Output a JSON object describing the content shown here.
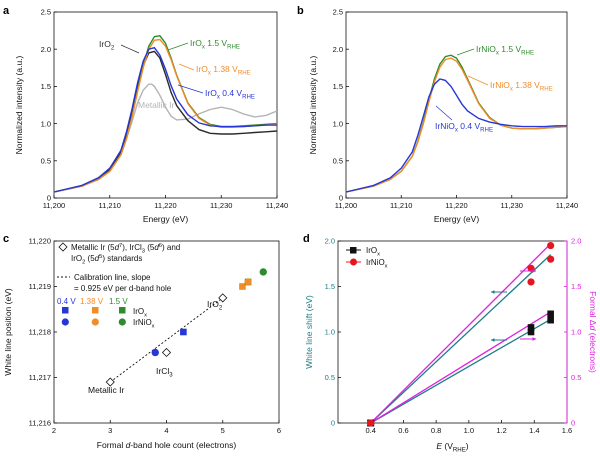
{
  "colors": {
    "ir_metal": "#b4b4b4",
    "iro2": "#2b2b2b",
    "iro_low": "#2637d6",
    "iro_mid": "#f28c28",
    "iro_high": "#2e8b2e",
    "niox_low": "#2637d6",
    "niox_mid": "#f28c28",
    "niox_high": "#2e8b2e",
    "teal": "#1c7f86",
    "magenta": "#e020e0",
    "black": "#111111",
    "red": "#e8141e"
  },
  "chart_data": [
    {
      "panel": "a",
      "type": "line",
      "xlabel": "Energy (eV)",
      "ylabel": "Normalized intensity (a.u.)",
      "xlim": [
        11200,
        11240
      ],
      "ylim": [
        0,
        2.5
      ],
      "xticks": [
        "11,200",
        "11,210",
        "11,220",
        "11,230",
        "11,240"
      ],
      "xtick_values": [
        11200,
        11210,
        11220,
        11230,
        11240
      ],
      "yticks": [
        "0",
        "0.5",
        "1.0",
        "1.5",
        "2.0",
        "2.5"
      ],
      "ytick_values": [
        0,
        0.5,
        1.0,
        1.5,
        2.0,
        2.5
      ],
      "labels": {
        "iro2": "IrO",
        "iro2_sub": "2",
        "iro_high": "IrO",
        "iro_high_sub": "x",
        "iro_high_v": " 1.5 V",
        "iro_high_rhe": "RHE",
        "iro_mid": "IrO",
        "iro_mid_sub": "x",
        "iro_mid_v": " 1.38 V",
        "iro_mid_rhe": "RHE",
        "iro_low": "IrO",
        "iro_low_sub": "x",
        "iro_low_v": " 0.4 V",
        "iro_low_rhe": "RHE",
        "metal": "Metallic Ir"
      },
      "series": [
        {
          "key": "metal",
          "x": [
            11200,
            11205,
            11208,
            11210,
            11212,
            11213,
            11214,
            11215,
            11216,
            11217,
            11217.5,
            11218,
            11219,
            11220,
            11221,
            11222,
            11224,
            11226,
            11228,
            11230,
            11232,
            11234,
            11236,
            11238,
            11240
          ],
          "y": [
            0.08,
            0.17,
            0.28,
            0.4,
            0.62,
            0.8,
            1.03,
            1.28,
            1.45,
            1.53,
            1.53,
            1.5,
            1.38,
            1.22,
            1.1,
            1.05,
            1.06,
            1.13,
            1.19,
            1.22,
            1.19,
            1.13,
            1.09,
            1.11,
            1.17
          ]
        },
        {
          "key": "iro2",
          "x": [
            11200,
            11205,
            11208,
            11210,
            11212,
            11213,
            11214,
            11215,
            11216,
            11217,
            11218,
            11219,
            11220,
            11221,
            11222,
            11224,
            11226,
            11228,
            11230,
            11232,
            11234,
            11236,
            11238,
            11240
          ],
          "y": [
            0.08,
            0.16,
            0.26,
            0.38,
            0.62,
            0.86,
            1.16,
            1.5,
            1.78,
            1.95,
            1.97,
            1.88,
            1.66,
            1.42,
            1.24,
            1.04,
            0.92,
            0.87,
            0.86,
            0.86,
            0.87,
            0.88,
            0.89,
            0.9
          ]
        },
        {
          "key": "iro_high",
          "x": [
            11200,
            11205,
            11208,
            11210,
            11212,
            11213,
            11214,
            11215,
            11216,
            11217,
            11218,
            11219,
            11220,
            11221,
            11222,
            11224,
            11226,
            11228,
            11230,
            11232,
            11234,
            11236,
            11238,
            11240
          ],
          "y": [
            0.08,
            0.16,
            0.25,
            0.36,
            0.58,
            0.8,
            1.1,
            1.45,
            1.78,
            2.04,
            2.17,
            2.18,
            2.08,
            1.88,
            1.65,
            1.28,
            1.08,
            0.99,
            0.96,
            0.96,
            0.97,
            0.98,
            0.99,
            1.0
          ]
        },
        {
          "key": "iro_mid",
          "x": [
            11200,
            11205,
            11208,
            11210,
            11212,
            11213,
            11214,
            11215,
            11216,
            11217,
            11218,
            11219,
            11220,
            11221,
            11222,
            11224,
            11226,
            11228,
            11230,
            11232,
            11234,
            11236,
            11238,
            11240
          ],
          "y": [
            0.08,
            0.16,
            0.25,
            0.36,
            0.58,
            0.8,
            1.09,
            1.43,
            1.75,
            2.0,
            2.12,
            2.13,
            2.04,
            1.86,
            1.64,
            1.27,
            1.07,
            0.98,
            0.95,
            0.95,
            0.96,
            0.97,
            0.98,
            0.99
          ]
        },
        {
          "key": "iro_low",
          "x": [
            11200,
            11205,
            11208,
            11210,
            11212,
            11213,
            11214,
            11215,
            11216,
            11217,
            11218,
            11219,
            11220,
            11221,
            11222,
            11224,
            11226,
            11228,
            11230,
            11232,
            11234,
            11236,
            11238,
            11240
          ],
          "y": [
            0.08,
            0.17,
            0.27,
            0.4,
            0.64,
            0.89,
            1.2,
            1.55,
            1.84,
            2.0,
            2.02,
            1.92,
            1.73,
            1.51,
            1.33,
            1.12,
            1.01,
            0.97,
            0.96,
            0.96,
            0.96,
            0.97,
            0.98,
            0.98
          ]
        }
      ]
    },
    {
      "panel": "b",
      "type": "line",
      "xlabel": "Energy (eV)",
      "ylabel": "Normalized intensity (a.u.)",
      "xlim": [
        11200,
        11240
      ],
      "ylim": [
        0,
        2.5
      ],
      "xticks": [
        "11,200",
        "11,210",
        "11,220",
        "11,230",
        "11,240"
      ],
      "xtick_values": [
        11200,
        11210,
        11220,
        11230,
        11240
      ],
      "yticks": [
        "0",
        "0.5",
        "1.0",
        "1.5",
        "2.0",
        "2.5"
      ],
      "ytick_values": [
        0,
        0.5,
        1.0,
        1.5,
        2.0,
        2.5
      ],
      "labels": {
        "niox_high": "IrNiO",
        "niox_high_sub": "x",
        "niox_high_v": " 1.5 V",
        "niox_high_rhe": "RHE",
        "niox_mid": "IrNiO",
        "niox_mid_sub": "x",
        "niox_mid_v": " 1.38 V",
        "niox_mid_rhe": "RHE",
        "niox_low": "IrNiO",
        "niox_low_sub": "x",
        "niox_low_v": " 0.4 V",
        "niox_low_rhe": "RHE"
      },
      "series": [
        {
          "key": "niox_high",
          "x": [
            11200,
            11205,
            11208,
            11210,
            11212,
            11213,
            11214,
            11215,
            11216,
            11217,
            11218,
            11219,
            11220,
            11221,
            11222,
            11224,
            11226,
            11228,
            11230,
            11232,
            11234,
            11236,
            11238,
            11240
          ],
          "y": [
            0.08,
            0.16,
            0.25,
            0.36,
            0.56,
            0.76,
            1.02,
            1.32,
            1.6,
            1.8,
            1.9,
            1.92,
            1.88,
            1.76,
            1.6,
            1.28,
            1.08,
            0.98,
            0.94,
            0.93,
            0.93,
            0.94,
            0.95,
            0.96
          ]
        },
        {
          "key": "niox_mid",
          "x": [
            11200,
            11205,
            11208,
            11210,
            11212,
            11213,
            11214,
            11215,
            11216,
            11217,
            11218,
            11219,
            11220,
            11221,
            11222,
            11224,
            11226,
            11228,
            11230,
            11232,
            11234,
            11236,
            11238,
            11240
          ],
          "y": [
            0.08,
            0.16,
            0.25,
            0.36,
            0.56,
            0.75,
            1.0,
            1.29,
            1.56,
            1.76,
            1.86,
            1.88,
            1.84,
            1.73,
            1.58,
            1.27,
            1.07,
            0.98,
            0.94,
            0.93,
            0.93,
            0.94,
            0.95,
            0.96
          ]
        },
        {
          "key": "niox_low",
          "x": [
            11200,
            11205,
            11208,
            11210,
            11212,
            11213,
            11214,
            11215,
            11216,
            11217,
            11218,
            11219,
            11220,
            11221,
            11222,
            11224,
            11226,
            11228,
            11230,
            11232,
            11234,
            11236,
            11238,
            11240
          ],
          "y": [
            0.08,
            0.17,
            0.27,
            0.4,
            0.62,
            0.84,
            1.1,
            1.36,
            1.53,
            1.6,
            1.58,
            1.5,
            1.38,
            1.26,
            1.17,
            1.07,
            1.02,
            0.99,
            0.97,
            0.96,
            0.96,
            0.96,
            0.97,
            0.97
          ]
        }
      ]
    },
    {
      "panel": "c",
      "type": "scatter",
      "xlabel_pre": "Formal ",
      "xlabel_italic": "d",
      "xlabel_post": "-band hole count (electrons)",
      "ylabel": "White line position (eV)",
      "xlim": [
        2,
        6
      ],
      "ylim": [
        11216,
        11220
      ],
      "xticks": [
        "2",
        "3",
        "4",
        "5",
        "6"
      ],
      "xtick_values": [
        2,
        3,
        4,
        5,
        6
      ],
      "yticks": [
        "11,216",
        "11,217",
        "11,218",
        "11,219",
        "11,220"
      ],
      "ytick_values": [
        11216,
        11217,
        11218,
        11219,
        11220
      ],
      "standards": [
        {
          "label": "Metallic Ir",
          "x": 3.0,
          "y": 11216.9
        },
        {
          "label": "IrCl",
          "label_sub": "3",
          "x": 4.0,
          "y": 11217.55
        },
        {
          "label": "IrO",
          "label_sub": "2",
          "x": 5.0,
          "y": 11218.75
        }
      ],
      "calibration": {
        "x": [
          3.0,
          5.0
        ],
        "y": [
          11216.9,
          11218.75
        ]
      },
      "iro_points": [
        {
          "potential": "0.4 V",
          "x": 4.3,
          "y": 11218.0
        },
        {
          "potential": "1.38 V",
          "x": 5.35,
          "y": 11219.0
        },
        {
          "potential": "1.5 V",
          "x": 5.45,
          "y": 11219.1
        }
      ],
      "iranio_points": [
        {
          "potential": "0.4 V",
          "x": 3.8,
          "y": 11217.55
        },
        {
          "potential": "1.38 V",
          "x": 5.45,
          "y": 11219.1
        },
        {
          "potential": "1.5 V",
          "x": 5.72,
          "y": 11219.32
        }
      ],
      "legend": {
        "standards_line1_pre": "Metallic Ir (5",
        "standards_line1_d": "d",
        "standards_line1_sup1": "7",
        "standards_line1_mid": "), IrCl",
        "standards_line1_sub": "3",
        "standards_line1_mid2": " (5",
        "standards_line1_d2": "d",
        "standards_line1_sup2": "6",
        "standards_line1_post": ") and",
        "standards_line2_pre": "IrO",
        "standards_line2_sub": "2",
        "standards_line2_mid": " (5",
        "standards_line2_d": "d",
        "standards_line2_sup": "5",
        "standards_line2_post": ") standards",
        "calib_line1": "Calibration line, slope",
        "calib_line2": "= 0.925 eV per d-band hole",
        "v1": "0.4 V",
        "v2": "1.38 V",
        "v3": "1.5 V",
        "row1": "IrO",
        "row1_sub": "x",
        "row2": "IrNiO",
        "row2_sub": "x"
      }
    },
    {
      "panel": "d",
      "type": "scatter",
      "xlabel_italic": "E",
      "xlabel_pre": " (V",
      "xlabel_sub": "RHE",
      "xlabel_post": ")",
      "ylabel": "White line shift (eV)",
      "ylabel_right_pre": "Formal Δ",
      "ylabel_right_italic": "d",
      "ylabel_right_post": " (electrons)",
      "xlim": [
        0.2,
        1.6
      ],
      "ylim": [
        0,
        2.0
      ],
      "ylim_right": [
        0,
        2.0
      ],
      "xticks": [
        "0.4",
        "0.6",
        "0.8",
        "1.0",
        "1.2",
        "1.4",
        "1.6"
      ],
      "xtick_values": [
        0.4,
        0.6,
        0.8,
        1.0,
        1.2,
        1.4,
        1.6
      ],
      "yticks": [
        "0",
        "0.5",
        "1.0",
        "1.5",
        "2.0"
      ],
      "ytick_values": [
        0,
        0.5,
        1.0,
        1.5,
        2.0
      ],
      "yticks_right": [
        "0",
        "0.5",
        "1.0",
        "1.5",
        "2.0"
      ],
      "legend": {
        "s1": "IrO",
        "s1_sub": "x",
        "s2": "IrNiO",
        "s2_sub": "x"
      },
      "series": [
        {
          "name": "IrO_x",
          "x": [
            0.4,
            1.38,
            1.38,
            1.5,
            1.5
          ],
          "y": [
            0.0,
            1.0,
            1.05,
            1.13,
            1.2
          ]
        },
        {
          "name": "IrNiO_x",
          "x": [
            0.4,
            1.38,
            1.38,
            1.5,
            1.5
          ],
          "y": [
            0.0,
            1.55,
            1.7,
            1.8,
            1.95
          ]
        }
      ],
      "fit_lines": [
        {
          "key": "teal_top",
          "x": [
            0.4,
            1.5
          ],
          "y": [
            0.0,
            1.85
          ]
        },
        {
          "key": "teal_bot",
          "x": [
            0.4,
            1.5
          ],
          "y": [
            0.0,
            1.14
          ]
        },
        {
          "key": "mag_top",
          "x": [
            0.4,
            1.5
          ],
          "y": [
            0.0,
            1.97
          ]
        },
        {
          "key": "mag_bot",
          "x": [
            0.4,
            1.5
          ],
          "y": [
            0.0,
            1.22
          ]
        }
      ]
    }
  ],
  "panel_letters": {
    "a": "a",
    "b": "b",
    "c": "c",
    "d": "d"
  }
}
